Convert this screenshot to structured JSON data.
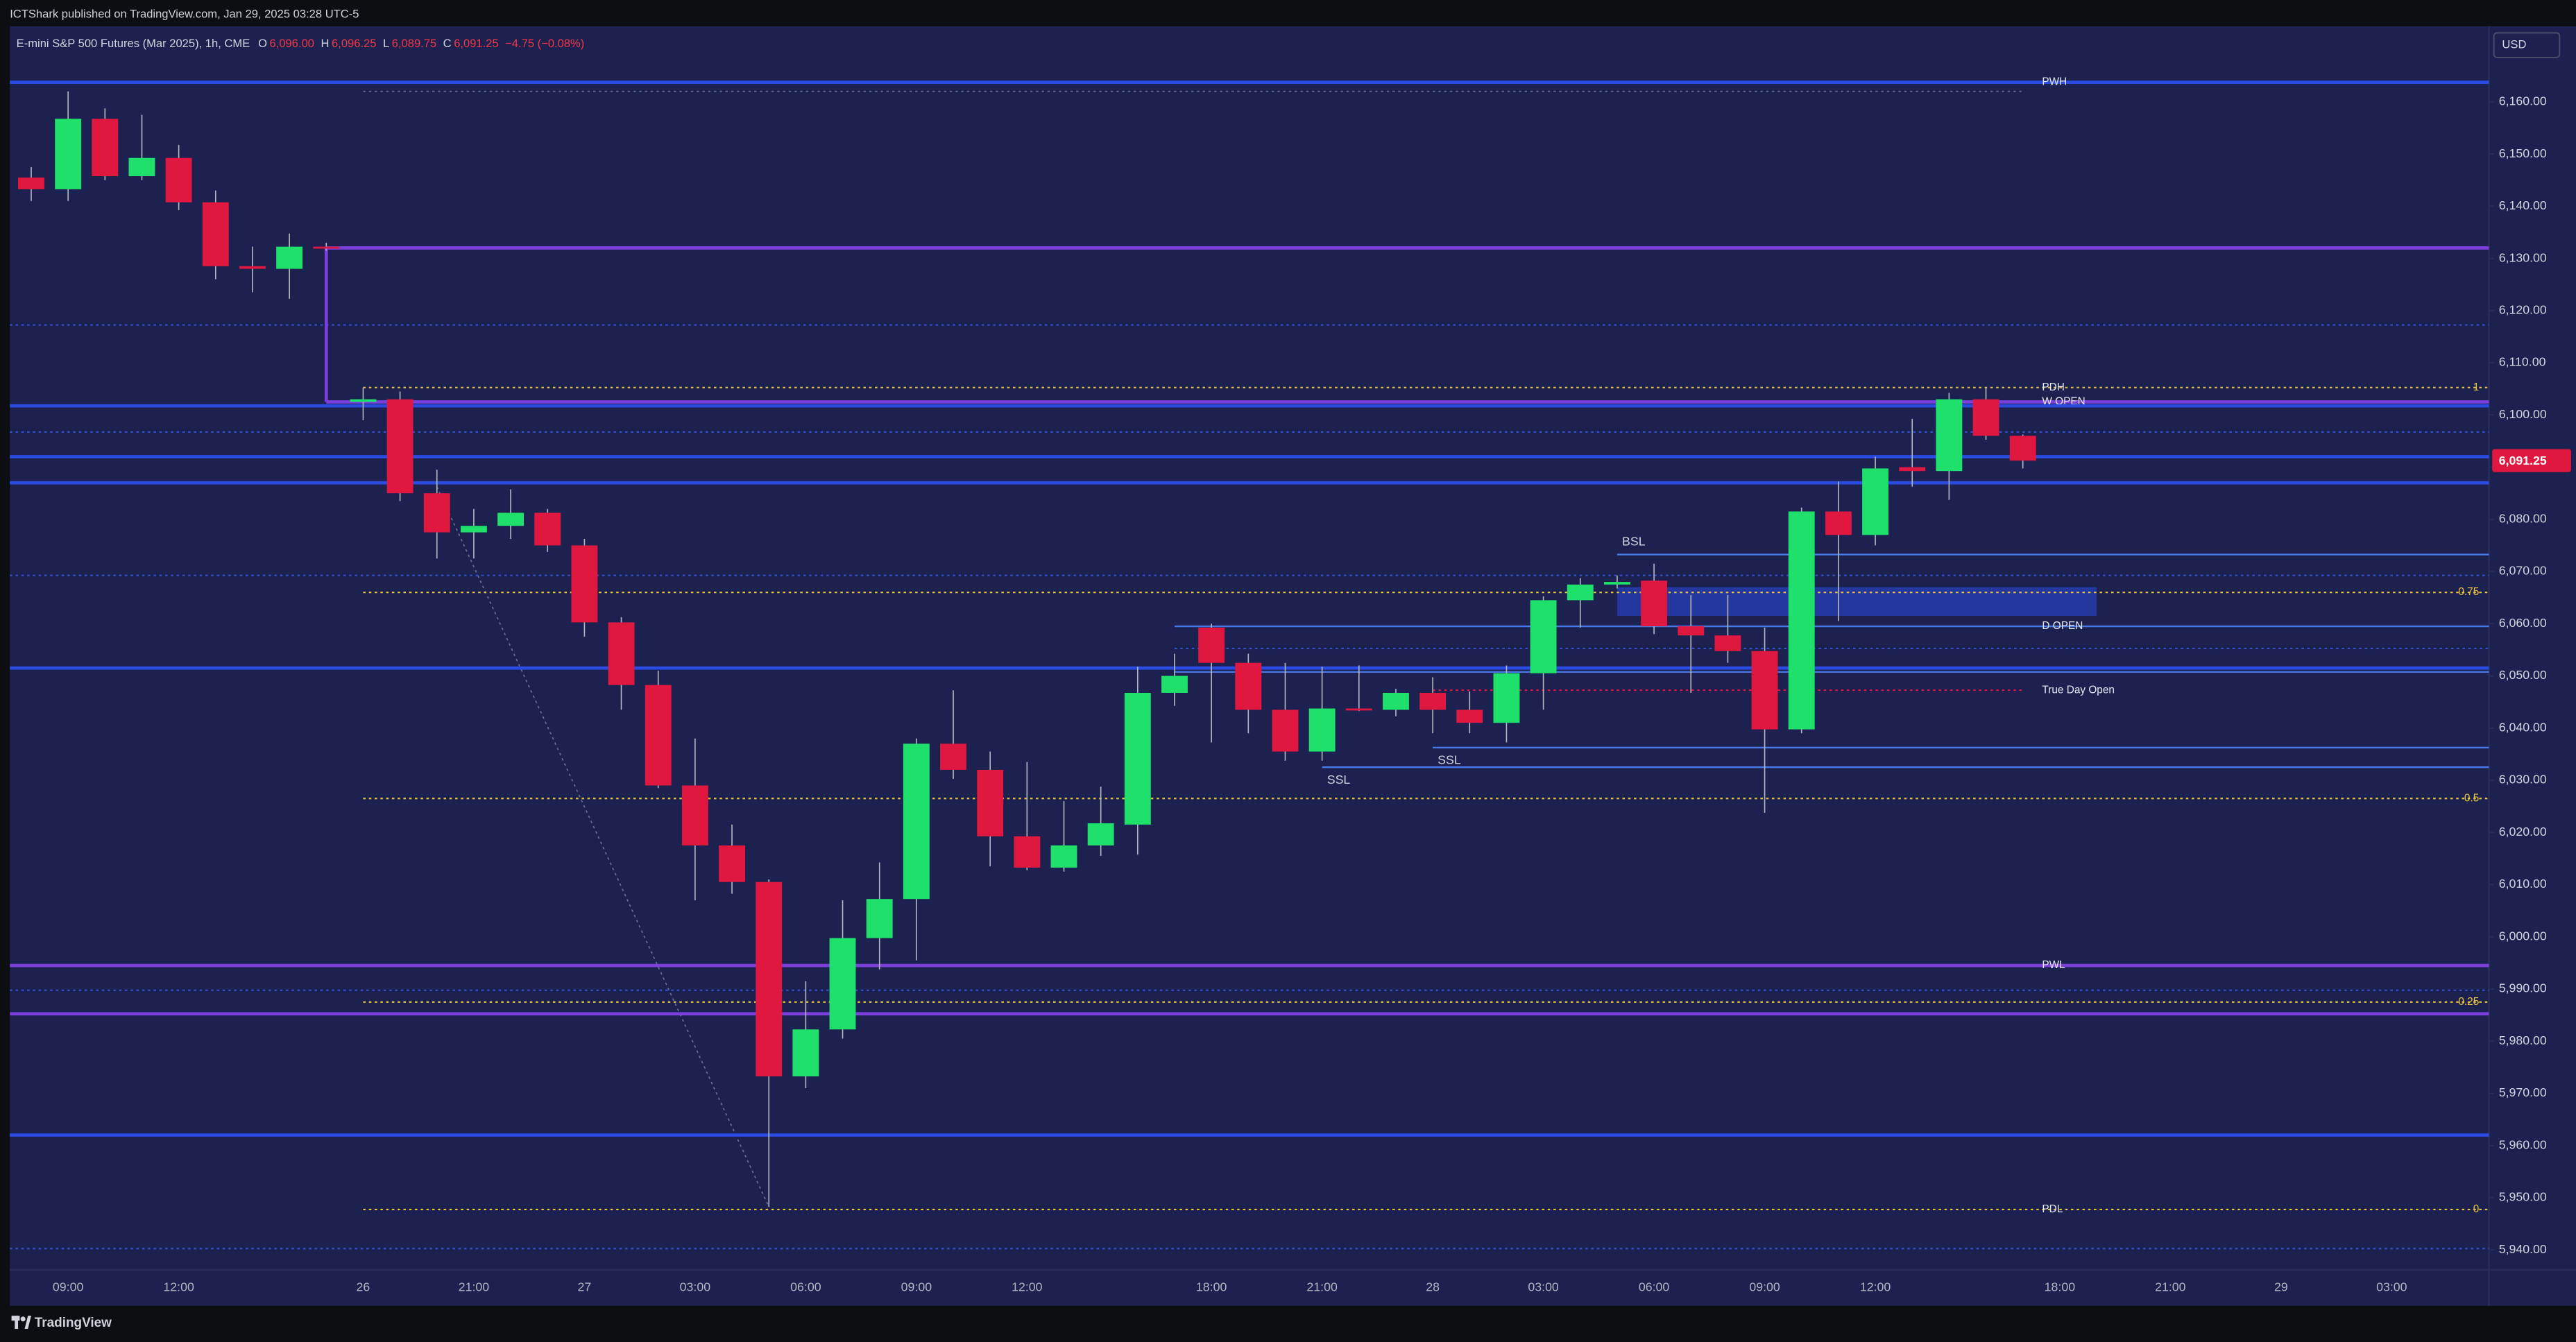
{
  "header": "ICTShark published on TradingView.com, Jan 29, 2025 03:28 UTC-5",
  "footer": "TradingView",
  "chart_data": {
    "type": "candlestick",
    "title": "E-mini S&P 500 Futures (Mar 2025), 1h, CME",
    "status": {
      "keys": [
        "O",
        "H",
        "L",
        "C"
      ],
      "labels": [
        "6,096.00",
        "6,096.25",
        "6,089.75",
        "6,091.25"
      ],
      "change": "−4.75 (−0.08%)"
    },
    "currency": "USD",
    "up_color": "#1fe06b",
    "down_color": "#e0173f",
    "grid": false,
    "categories": [
      null,
      "09:00",
      null,
      null,
      "12:00",
      null,
      null,
      null,
      null,
      "26",
      null,
      null,
      "21:00",
      null,
      null,
      "27",
      null,
      null,
      "03:00",
      null,
      null,
      "06:00",
      null,
      null,
      "09:00",
      null,
      null,
      "12:00",
      null,
      null,
      null,
      null,
      "18:00",
      null,
      null,
      "21:00",
      null,
      null,
      "28",
      null,
      null,
      "03:00",
      null,
      null,
      "06:00",
      null,
      null,
      "09:00",
      null,
      null,
      "12:00",
      null,
      null,
      null,
      null,
      "18:00",
      null,
      null,
      "21:00",
      null,
      null,
      "29",
      null,
      null,
      "03:00",
      null,
      null
    ],
    "open": [
      6145.5,
      6143.25,
      6156.75,
      6145.75,
      6149.25,
      6140.75,
      6128.5,
      6128,
      6132.25,
      6102.5,
      6103,
      6085,
      6077.5,
      6078.75,
      6081.25,
      6075,
      6060.25,
      6048.25,
      6029,
      6017.5,
      6010.5,
      5973.25,
      5982.25,
      5999.75,
      6007.25,
      6037,
      6032,
      6019.25,
      6013.25,
      6017.5,
      6021.5,
      6046.75,
      6059.25,
      6052.5,
      6043.5,
      6035.5,
      6043.75,
      6043.5,
      6046.75,
      6043.5,
      6041,
      6050.5,
      6064.5,
      6067.5,
      6068.25,
      6059.5,
      6057.75,
      6054.75,
      6039.75,
      6081.5,
      6077,
      6090,
      6089.25,
      6103,
      6096,
      null,
      null,
      null,
      null,
      null,
      null,
      null,
      null,
      null,
      null,
      null,
      null
    ],
    "high": [
      6147.5,
      6162,
      6158.75,
      6157.5,
      6151.75,
      6143,
      6132.25,
      6134.75,
      6133,
      6105.25,
      6104.5,
      6089.5,
      6082,
      6085.75,
      6082,
      6076.25,
      6061.25,
      6051,
      6038,
      6021.5,
      6011,
      5991.5,
      6007,
      6014.25,
      6038,
      6047.25,
      6035.5,
      6033.5,
      6026,
      6028.75,
      6051.75,
      6054.25,
      6060,
      6054.25,
      6052.5,
      6051.75,
      6052,
      6047.5,
      6049.75,
      6047,
      6052,
      6065.25,
      6068.75,
      6069.25,
      6071.5,
      6065.5,
      6065.5,
      6059.25,
      6082.25,
      6087.25,
      6092,
      6099.25,
      6104.25,
      6105.25,
      6096.25,
      null,
      null,
      null,
      null,
      null,
      null,
      null,
      null,
      null,
      null,
      null,
      null
    ],
    "low": [
      6141,
      6141,
      6145,
      6145,
      6139.25,
      6126,
      6123.5,
      6122.25,
      6131.5,
      6099,
      6083.5,
      6072.5,
      6072.5,
      6076.25,
      6073.75,
      6057.5,
      6043.5,
      6028.5,
      6007,
      6008.25,
      5948.25,
      5971,
      5980.5,
      5993.75,
      5995.5,
      6030.25,
      6013.5,
      6012.75,
      6012.5,
      6015.5,
      6015.75,
      6044.25,
      6037.25,
      6039,
      6033.75,
      6033.75,
      6043.25,
      6042.25,
      6039,
      6039,
      6037.25,
      6043.5,
      6059.25,
      6066.75,
      6058,
      6046.75,
      6052.5,
      6023.75,
      6039,
      6060.5,
      6075,
      6086.25,
      6083.75,
      6095.25,
      6089.75,
      null,
      null,
      null,
      null,
      null,
      null,
      null,
      null,
      null,
      null,
      null,
      null
    ],
    "close": [
      6143.25,
      6156.75,
      6145.75,
      6149.25,
      6140.75,
      6128.5,
      6128,
      6132.25,
      6132,
      6103,
      6085,
      6077.5,
      6078.75,
      6081.25,
      6075,
      6060.25,
      6048.25,
      6029,
      6017.5,
      6010.5,
      5973.25,
      5982.25,
      5999.75,
      6007.25,
      6037,
      6032,
      6019.25,
      6013.25,
      6017.5,
      6021.75,
      6046.75,
      6050,
      6052.5,
      6043.5,
      6035.5,
      6043.75,
      6043.5,
      6046.75,
      6043.5,
      6041,
      6050.5,
      6064.5,
      6067.5,
      6068,
      6059.5,
      6057.75,
      6054.75,
      6039.75,
      6081.5,
      6077,
      6089.75,
      6089.25,
      6103,
      6096,
      6091.25,
      null,
      null,
      null,
      null,
      null,
      null,
      null,
      null,
      null,
      null,
      null,
      null
    ],
    "ylim": [
      5936.2,
      6173.85
    ],
    "yticks": [
      {
        "value": 6160,
        "label": "6,160.00"
      },
      {
        "value": 6150,
        "label": "6,150.00"
      },
      {
        "value": 6140,
        "label": "6,140.00"
      },
      {
        "value": 6130,
        "label": "6,130.00"
      },
      {
        "value": 6120,
        "label": "6,120.00"
      },
      {
        "value": 6110,
        "label": "6,110.00"
      },
      {
        "value": 6100,
        "label": "6,100.00"
      },
      {
        "value": 6090,
        "label": "6,090.00"
      },
      {
        "value": 6080,
        "label": "6,080.00"
      },
      {
        "value": 6070,
        "label": "6,070.00"
      },
      {
        "value": 6060,
        "label": "6,060.00"
      },
      {
        "value": 6050,
        "label": "6,050.00"
      },
      {
        "value": 6040,
        "label": "6,040.00"
      },
      {
        "value": 6030,
        "label": "6,030.00"
      },
      {
        "value": 6020,
        "label": "6,020.00"
      },
      {
        "value": 6010,
        "label": "6,010.00"
      },
      {
        "value": 6000,
        "label": "6,000.00"
      },
      {
        "value": 5990,
        "label": "5,990.00"
      },
      {
        "value": 5980,
        "label": "5,980.00"
      },
      {
        "value": 5970,
        "label": "5,970.00"
      },
      {
        "value": 5960,
        "label": "5,960.00"
      },
      {
        "value": 5950,
        "label": "5,950.00"
      },
      {
        "value": 5940,
        "label": "5,940.00"
      }
    ],
    "levels": [
      {
        "value": 6163.75,
        "color": "#2a4ae0",
        "style": "solid",
        "label": "PWH"
      },
      {
        "value": 6162,
        "color": "#5b6386",
        "style": "dotted",
        "from": 9,
        "to": 54
      },
      {
        "value": 6132,
        "color": "#7b3fdc",
        "style": "solid",
        "from": 8
      },
      {
        "value": 6117.25,
        "color": "#3553c9",
        "style": "dotted"
      },
      {
        "value": 6105.25,
        "color": "#e9c53a",
        "style": "dotted",
        "from": 9,
        "label": "PDH",
        "ratio": 1
      },
      {
        "value": 6102.5,
        "color": "#7b3fdc",
        "style": "solid",
        "from": 8,
        "label": "W OPEN"
      },
      {
        "value": 6101.75,
        "color": "#2a4ae0",
        "style": "solid"
      },
      {
        "value": 6096.75,
        "color": "#3553c9",
        "style": "dotted"
      },
      {
        "value": 6092,
        "color": "#2a4ae0",
        "style": "solid"
      },
      {
        "value": 6087,
        "color": "#2a4ae0",
        "style": "solid"
      },
      {
        "value": 6073.25,
        "color": "#4a78e8",
        "style": "thin",
        "from": 43,
        "tag": "BSL",
        "tag_pos": "above"
      },
      {
        "value": 6069.25,
        "color": "#3553c9",
        "style": "dotted"
      },
      {
        "value": 6066,
        "color": "#e9c53a",
        "style": "dotted",
        "from": 9,
        "ratio": 0.75
      },
      {
        "value": 6059.5,
        "color": "#4a78e8",
        "style": "thin",
        "from": 31,
        "label": "D OPEN"
      },
      {
        "value": 6055.25,
        "color": "#3553c9",
        "style": "dotted",
        "from": 31
      },
      {
        "value": 6051.5,
        "color": "#2a4ae0",
        "style": "solid"
      },
      {
        "value": 6050.75,
        "color": "#4a78e8",
        "style": "thin",
        "from": 31
      },
      {
        "value": 6047.25,
        "color": "#e0173f",
        "style": "dotted",
        "from": 38,
        "to": 54,
        "label": "True Day Open"
      },
      {
        "value": 6036.25,
        "color": "#4a78e8",
        "style": "thin",
        "from": 38,
        "tag": "SSL",
        "tag_pos": "below"
      },
      {
        "value": 6032.5,
        "color": "#4a78e8",
        "style": "thin",
        "from": 35,
        "tag": "SSL",
        "tag_pos": "below"
      },
      {
        "value": 6026.5,
        "color": "#e9c53a",
        "style": "dotted",
        "from": 9,
        "ratio": 0.5
      },
      {
        "value": 5994.5,
        "color": "#7b3fdc",
        "style": "solid",
        "label": "PWL"
      },
      {
        "value": 5989.75,
        "color": "#3553c9",
        "style": "dotted"
      },
      {
        "value": 5987.5,
        "color": "#e9c53a",
        "style": "dotted",
        "from": 9,
        "ratio": 0.25
      },
      {
        "value": 5985.25,
        "color": "#7b3fdc",
        "style": "solid"
      },
      {
        "value": 5962,
        "color": "#2a4ae0",
        "style": "solid"
      },
      {
        "value": 5947.75,
        "color": "#e9c53a",
        "style": "dotted",
        "from": 9,
        "label": "PDL",
        "ratio": 0
      },
      {
        "value": 5940.25,
        "color": "#3553c9",
        "style": "dotted"
      }
    ],
    "box": {
      "top": 6067,
      "bottom": 6061.5,
      "from": 43,
      "to": 56,
      "color": "#2a4ae0"
    },
    "trendline": {
      "from": 11,
      "from_value": 6086.25,
      "to": 20,
      "to_value": 5948.25,
      "color": "#6b7094"
    }
  }
}
